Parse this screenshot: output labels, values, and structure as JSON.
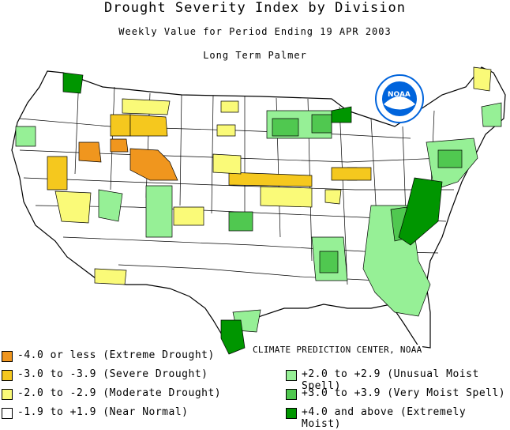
{
  "title": "Drought Severity Index by Division",
  "subtitle": "Weekly Value for Period Ending 19 APR 2003",
  "index_name": "Long Term Palmer",
  "logo_text": "NOAA",
  "credit": "CLIMATE PREDICTION CENTER, NOAA",
  "colors": {
    "extreme_drought": "#f0961e",
    "severe_drought": "#f5c81e",
    "moderate_drought": "#fafa78",
    "near_normal": "#ffffff",
    "unusual_moist": "#96f096",
    "very_moist": "#50c850",
    "extremely_moist": "#009600",
    "outline": "#000000",
    "logo": "#0064dc"
  },
  "legend": {
    "left": [
      {
        "label": "-4.0 or less (Extreme Drought)",
        "color": "#f0961e"
      },
      {
        "label": "-3.0 to -3.9 (Severe Drought)",
        "color": "#f5c81e"
      },
      {
        "label": "-2.0 to -2.9 (Moderate Drought)",
        "color": "#fafa78"
      },
      {
        "label": "-1.9 to +1.9 (Near Normal)",
        "color": "#ffffff"
      }
    ],
    "right": [
      {
        "label": "+2.0 to +2.9 (Unusual Moist Spell)",
        "color": "#96f096"
      },
      {
        "label": "+3.0 to +3.9 (Very Moist Spell)",
        "color": "#50c850"
      },
      {
        "label": "+4.0 and above (Extremely Moist)",
        "color": "#009600"
      }
    ]
  }
}
